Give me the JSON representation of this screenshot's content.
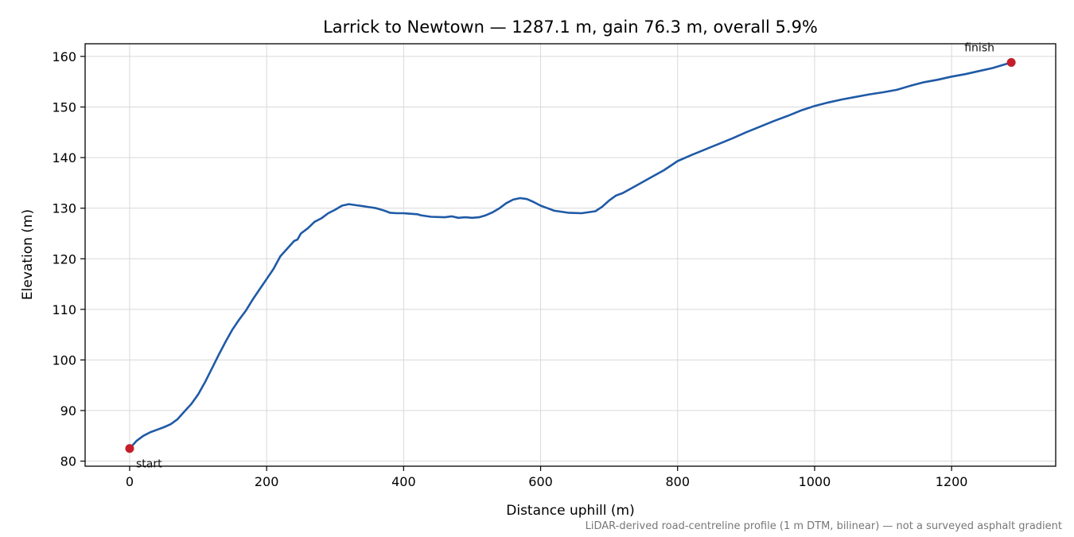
{
  "chart_data": {
    "type": "line",
    "title": "Larrick to Newtown — 1287.1 m, gain 76.3 m, overall 5.9%",
    "xlabel": "Distance uphill (m)",
    "ylabel": "Elevation (m)",
    "footnote": "LiDAR-derived road-centreline profile (1 m DTM, bilinear) — not a surveyed asphalt gradient",
    "xlim": [
      -65,
      1352
    ],
    "ylim": [
      79,
      162.5
    ],
    "x_ticks": [
      0,
      200,
      400,
      600,
      800,
      1000,
      1200
    ],
    "y_ticks": [
      80,
      90,
      100,
      110,
      120,
      130,
      140,
      150,
      160
    ],
    "grid": true,
    "line_color": "#1f5aa6",
    "marker_color": "#c41e2a",
    "series": [
      {
        "x": [
          0,
          10,
          20,
          30,
          40,
          50,
          60,
          70,
          80,
          90,
          100,
          110,
          120,
          130,
          140,
          150,
          160,
          170,
          180,
          190,
          200,
          210,
          220,
          230,
          240,
          245,
          250,
          260,
          270,
          280,
          290,
          300,
          310,
          320,
          330,
          340,
          350,
          360,
          370,
          380,
          390,
          400,
          410,
          420,
          425,
          440,
          460,
          470,
          480,
          490,
          500,
          510,
          520,
          530,
          540,
          550,
          560,
          570,
          580,
          590,
          600,
          610,
          620,
          640,
          660,
          680,
          690,
          700,
          710,
          720,
          740,
          760,
          780,
          800,
          820,
          840,
          860,
          880,
          900,
          920,
          940,
          960,
          980,
          1000,
          1020,
          1040,
          1060,
          1080,
          1100,
          1120,
          1140,
          1160,
          1180,
          1200,
          1220,
          1240,
          1260,
          1287.1
        ],
        "y": [
          82.5,
          84.0,
          85.0,
          85.7,
          86.2,
          86.7,
          87.3,
          88.3,
          89.8,
          91.3,
          93.2,
          95.6,
          98.3,
          101.0,
          103.6,
          106.0,
          108.0,
          109.8,
          112.0,
          114.0,
          116.0,
          118.0,
          120.5,
          122.0,
          123.5,
          123.8,
          125.0,
          126.0,
          127.3,
          128.0,
          129.0,
          129.7,
          130.5,
          130.8,
          130.6,
          130.4,
          130.2,
          130.0,
          129.6,
          129.1,
          129.0,
          129.0,
          128.9,
          128.8,
          128.6,
          128.3,
          128.2,
          128.4,
          128.1,
          128.2,
          128.1,
          128.2,
          128.6,
          129.2,
          130.0,
          131.0,
          131.7,
          132.0,
          131.8,
          131.2,
          130.5,
          130.0,
          129.5,
          129.1,
          129.0,
          129.4,
          130.3,
          131.5,
          132.5,
          133.0,
          134.5,
          136.0,
          137.5,
          139.3,
          140.5,
          141.6,
          142.7,
          143.8,
          145.0,
          146.1,
          147.2,
          148.2,
          149.3,
          150.2,
          150.9,
          151.5,
          152.0,
          152.5,
          152.9,
          153.4,
          154.2,
          154.9,
          155.4,
          156.0,
          156.5,
          157.1,
          157.7,
          158.8
        ],
        "start_label": "start",
        "finish_label": "finish"
      }
    ]
  }
}
